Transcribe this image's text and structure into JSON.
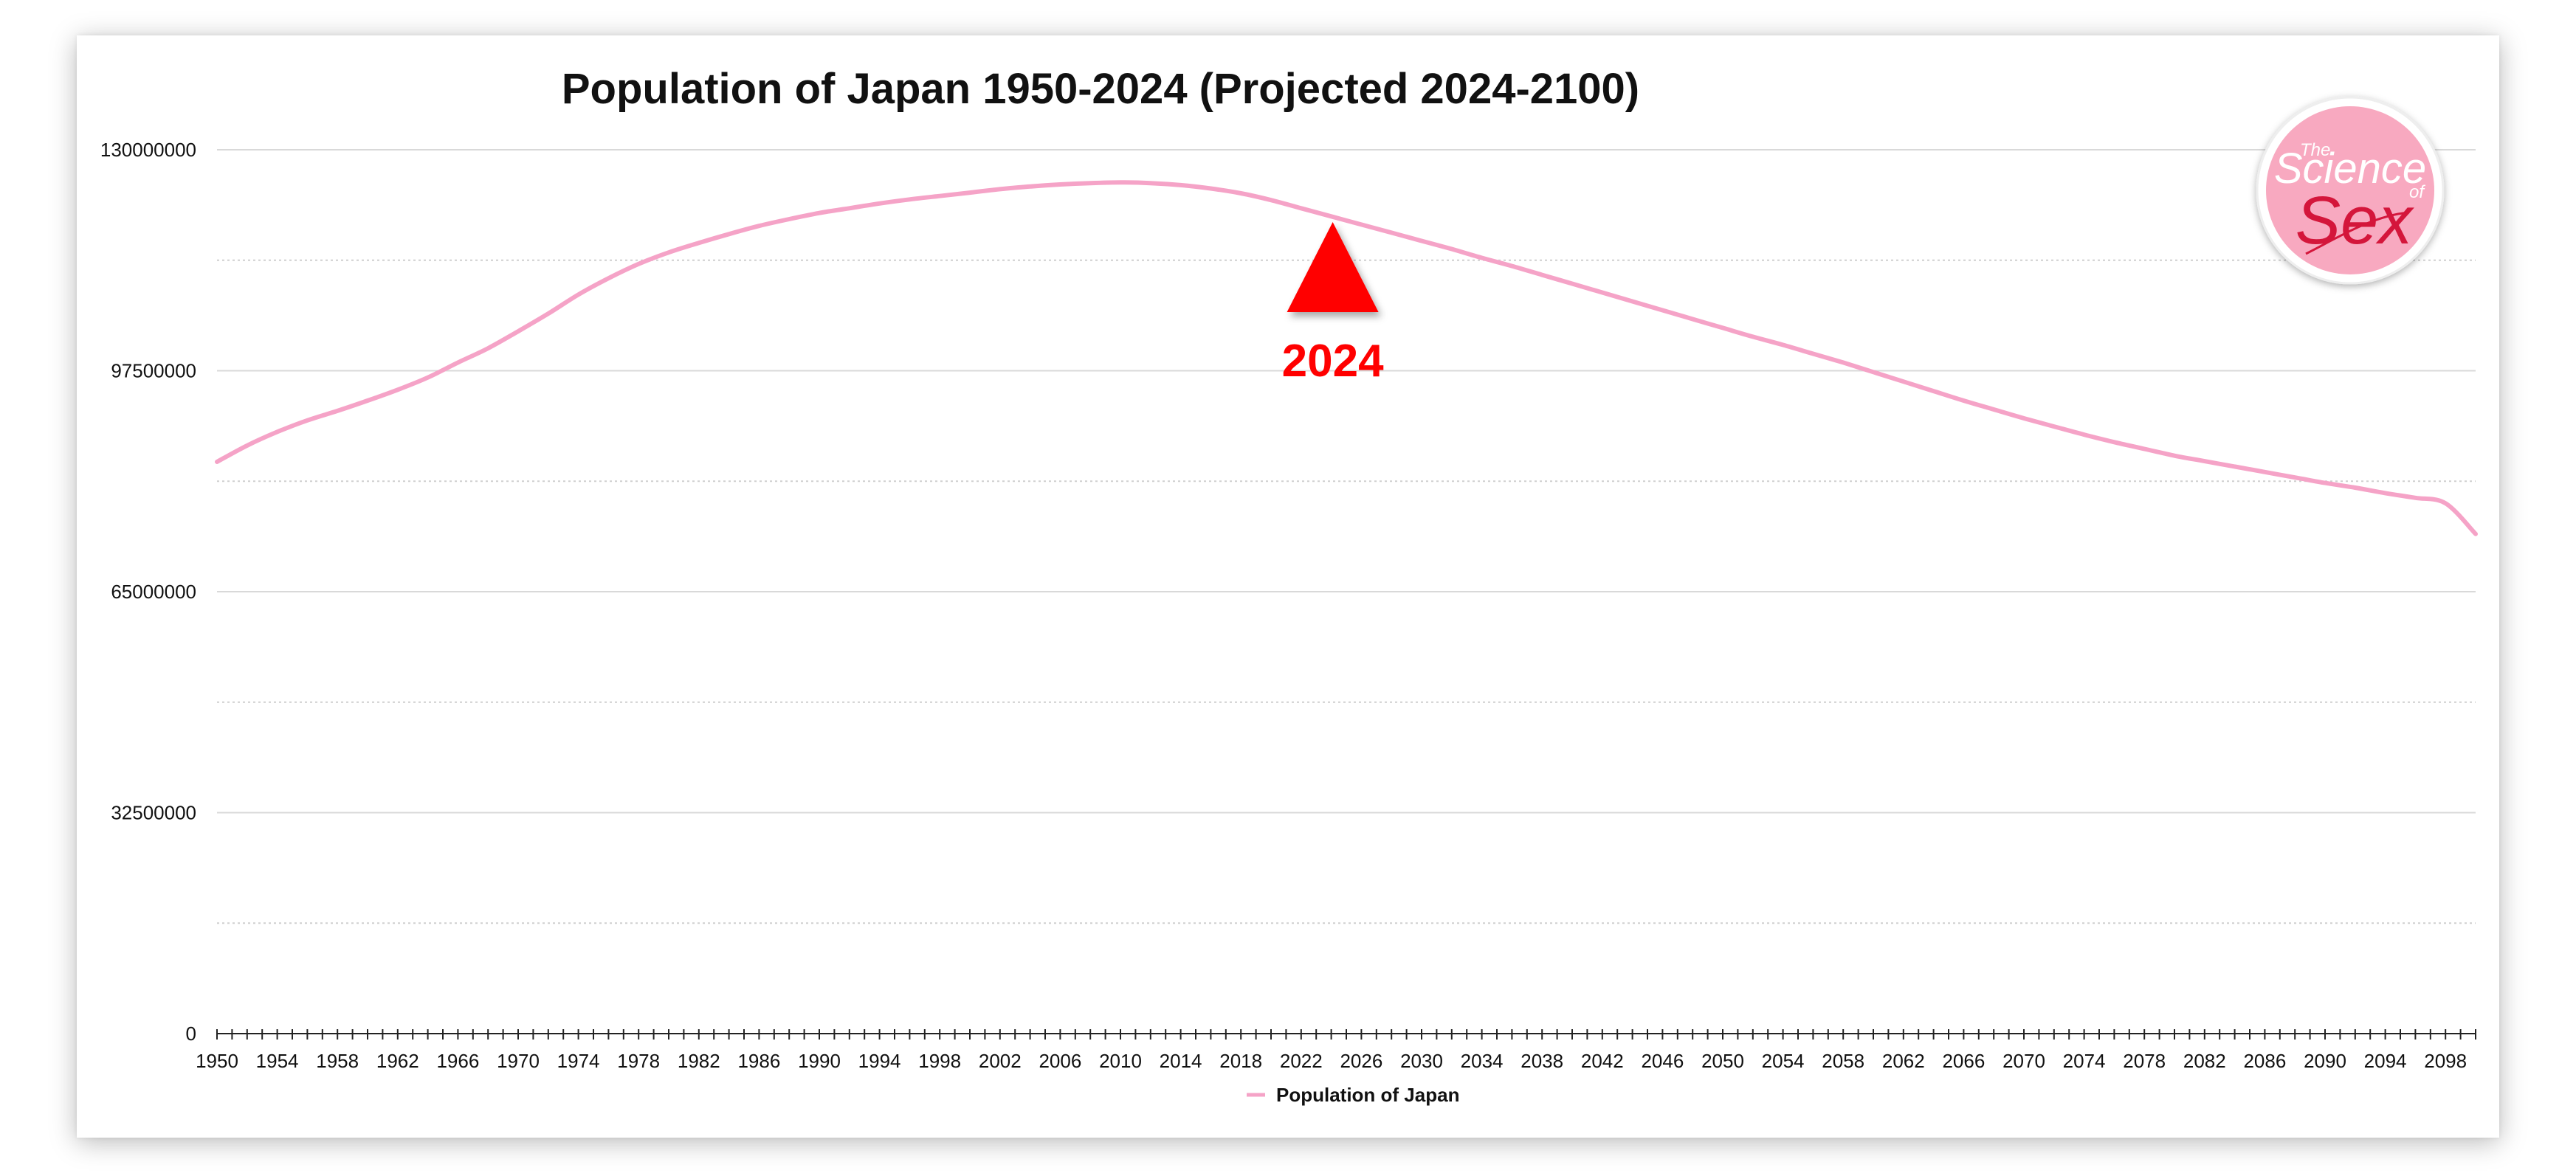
{
  "chart_data": {
    "type": "line",
    "title": "Population of Japan 1950-2024 (Projected 2024-2100)",
    "xlabel": "",
    "ylabel": "",
    "xlim": [
      1950,
      2100
    ],
    "ylim": [
      0,
      130000000
    ],
    "y_ticks": [
      "0",
      "32500000",
      "65000000",
      "97500000",
      "130000000"
    ],
    "x_tick_labels": [
      "1950",
      "1954",
      "1958",
      "1962",
      "1966",
      "1970",
      "1974",
      "1978",
      "1982",
      "1986",
      "1990",
      "1994",
      "1998",
      "2002",
      "2006",
      "2010",
      "2014",
      "2018",
      "2022",
      "2026",
      "2030",
      "2034",
      "2038",
      "2042",
      "2046",
      "2050",
      "2054",
      "2058",
      "2062",
      "2066",
      "2070",
      "2074",
      "2078",
      "2082",
      "2086",
      "2090",
      "2094",
      "2098"
    ],
    "grid": true,
    "legend_position": "bottom-center",
    "series": [
      {
        "name": "Population of Japan",
        "color": "#f5a3c7",
        "points": [
          [
            1950,
            84100000
          ],
          [
            1952,
            86500000
          ],
          [
            1954,
            88500000
          ],
          [
            1956,
            90200000
          ],
          [
            1958,
            91600000
          ],
          [
            1960,
            93100000
          ],
          [
            1962,
            94700000
          ],
          [
            1964,
            96500000
          ],
          [
            1966,
            98700000
          ],
          [
            1968,
            100800000
          ],
          [
            1970,
            103300000
          ],
          [
            1972,
            105900000
          ],
          [
            1974,
            108700000
          ],
          [
            1976,
            111100000
          ],
          [
            1978,
            113200000
          ],
          [
            1980,
            114900000
          ],
          [
            1982,
            116300000
          ],
          [
            1984,
            117600000
          ],
          [
            1986,
            118800000
          ],
          [
            1988,
            119800000
          ],
          [
            1990,
            120700000
          ],
          [
            1992,
            121400000
          ],
          [
            1994,
            122100000
          ],
          [
            1996,
            122700000
          ],
          [
            1998,
            123200000
          ],
          [
            2000,
            123700000
          ],
          [
            2002,
            124200000
          ],
          [
            2004,
            124600000
          ],
          [
            2006,
            124900000
          ],
          [
            2008,
            125100000
          ],
          [
            2010,
            125200000
          ],
          [
            2012,
            125100000
          ],
          [
            2014,
            124800000
          ],
          [
            2016,
            124300000
          ],
          [
            2018,
            123600000
          ],
          [
            2020,
            122600000
          ],
          [
            2022,
            121400000
          ],
          [
            2024,
            120200000
          ],
          [
            2026,
            119000000
          ],
          [
            2028,
            117800000
          ],
          [
            2030,
            116600000
          ],
          [
            2032,
            115400000
          ],
          [
            2034,
            114100000
          ],
          [
            2036,
            112900000
          ],
          [
            2038,
            111600000
          ],
          [
            2040,
            110300000
          ],
          [
            2042,
            109000000
          ],
          [
            2044,
            107700000
          ],
          [
            2046,
            106400000
          ],
          [
            2048,
            105100000
          ],
          [
            2050,
            103800000
          ],
          [
            2052,
            102500000
          ],
          [
            2054,
            101300000
          ],
          [
            2056,
            100000000
          ],
          [
            2058,
            98700000
          ],
          [
            2060,
            97300000
          ],
          [
            2062,
            95900000
          ],
          [
            2064,
            94500000
          ],
          [
            2066,
            93100000
          ],
          [
            2068,
            91800000
          ],
          [
            2070,
            90500000
          ],
          [
            2072,
            89300000
          ],
          [
            2074,
            88100000
          ],
          [
            2076,
            87000000
          ],
          [
            2078,
            86000000
          ],
          [
            2080,
            85000000
          ],
          [
            2082,
            84200000
          ],
          [
            2084,
            83400000
          ],
          [
            2086,
            82600000
          ],
          [
            2088,
            81800000
          ],
          [
            2090,
            81000000
          ],
          [
            2092,
            80300000
          ],
          [
            2094,
            79500000
          ],
          [
            2096,
            78800000
          ],
          [
            2098,
            78000000
          ],
          [
            2100,
            73500000
          ]
        ]
      }
    ],
    "annotations": [
      {
        "text": "2024",
        "x": 2024,
        "color": "#ff0000",
        "shape": "up-triangle"
      }
    ]
  },
  "logo": {
    "text": "The Science of Sex",
    "color": "#f8a9c0"
  }
}
